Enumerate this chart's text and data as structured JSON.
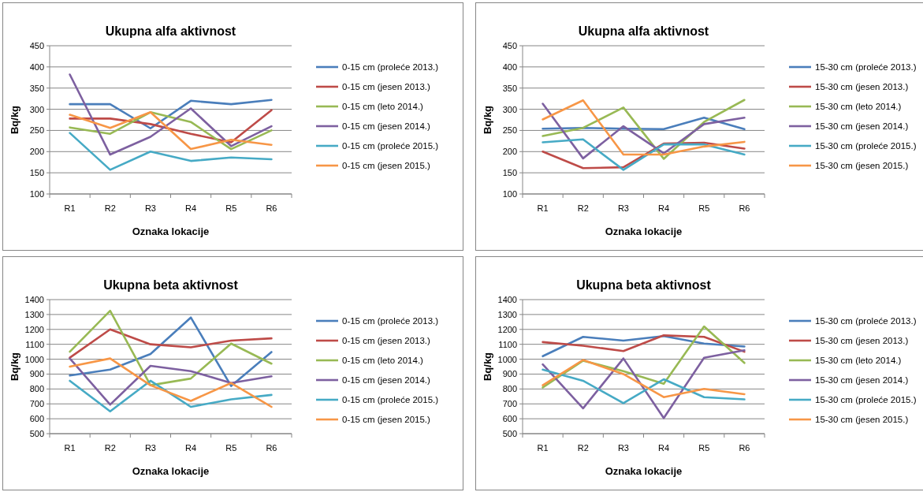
{
  "chart_data": [
    {
      "type": "line",
      "title": "Ukupna alfa aktivnost",
      "xlabel": "Oznaka lokacije",
      "ylabel": "Bq/kg",
      "categories": [
        "R1",
        "R2",
        "R3",
        "R4",
        "R5",
        "R6"
      ],
      "ylim": [
        100,
        450
      ],
      "yticks": [
        100,
        150,
        200,
        250,
        300,
        350,
        400,
        450
      ],
      "grid": "y",
      "legend": "right",
      "series": [
        {
          "name": "0-15 cm (proleće 2013.)",
          "color": "#4a7ebb",
          "values": [
            312,
            312,
            255,
            320,
            312,
            322
          ]
        },
        {
          "name": "0-15 cm (jesen 2013.)",
          "color": "#be4b48",
          "values": [
            278,
            278,
            265,
            242,
            222,
            298
          ]
        },
        {
          "name": "0-15 cm (leto 2014.)",
          "color": "#98b954",
          "values": [
            257,
            242,
            293,
            270,
            206,
            250
          ]
        },
        {
          "name": "0-15 cm (jesen 2014.)",
          "color": "#7d60a0",
          "values": [
            382,
            193,
            235,
            302,
            213,
            260
          ]
        },
        {
          "name": "0-15 cm (proleće 2015.)",
          "color": "#46aac5",
          "values": [
            244,
            157,
            200,
            178,
            186,
            182
          ]
        },
        {
          "name": "0-15 cm (jesen 2015.)",
          "color": "#f79646",
          "values": [
            287,
            256,
            293,
            206,
            228,
            216
          ]
        }
      ]
    },
    {
      "type": "line",
      "title": "Ukupna alfa aktivnost",
      "xlabel": "Oznaka lokacije",
      "ylabel": "Bq/kg",
      "categories": [
        "R1",
        "R2",
        "R3",
        "R4",
        "R5",
        "R6"
      ],
      "ylim": [
        100,
        450
      ],
      "yticks": [
        100,
        150,
        200,
        250,
        300,
        350,
        400,
        450
      ],
      "grid": "y",
      "legend": "right",
      "series": [
        {
          "name": "15-30 cm (proleće 2013.)",
          "color": "#4a7ebb",
          "values": [
            254,
            256,
            254,
            253,
            280,
            253
          ]
        },
        {
          "name": "15-30 cm (jesen 2013.)",
          "color": "#be4b48",
          "values": [
            200,
            161,
            163,
            219,
            221,
            207
          ]
        },
        {
          "name": "15-30 cm (leto 2014.)",
          "color": "#98b954",
          "values": [
            237,
            256,
            304,
            183,
            270,
            322
          ]
        },
        {
          "name": "15-30 cm (jesen 2014.)",
          "color": "#7d60a0",
          "values": [
            313,
            184,
            260,
            196,
            265,
            280
          ]
        },
        {
          "name": "15-30 cm (proleće 2015.)",
          "color": "#46aac5",
          "values": [
            222,
            229,
            157,
            217,
            217,
            193
          ]
        },
        {
          "name": "15-30 cm (jesen 2015.)",
          "color": "#f79646",
          "values": [
            276,
            321,
            193,
            193,
            212,
            223
          ]
        }
      ]
    },
    {
      "type": "line",
      "title": "Ukupna beta aktivnost",
      "xlabel": "Oznaka lokacije",
      "ylabel": "Bq/kg",
      "categories": [
        "R1",
        "R2",
        "R3",
        "R4",
        "R5",
        "R6"
      ],
      "ylim": [
        500,
        1400
      ],
      "yticks": [
        500,
        600,
        700,
        800,
        900,
        1000,
        1100,
        1200,
        1300,
        1400
      ],
      "grid": "y",
      "legend": "right",
      "series": [
        {
          "name": "0-15 cm (proleće 2013.)",
          "color": "#4a7ebb",
          "values": [
            890,
            930,
            1035,
            1280,
            820,
            1048
          ]
        },
        {
          "name": "0-15 cm (jesen 2013.)",
          "color": "#be4b48",
          "values": [
            1010,
            1200,
            1100,
            1080,
            1125,
            1140
          ]
        },
        {
          "name": "0-15 cm (leto 2014.)",
          "color": "#98b954",
          "values": [
            1050,
            1325,
            825,
            870,
            1105,
            970
          ]
        },
        {
          "name": "0-15 cm (jesen 2014.)",
          "color": "#7d60a0",
          "values": [
            1005,
            695,
            955,
            920,
            840,
            885
          ]
        },
        {
          "name": "0-15 cm (proleće 2015.)",
          "color": "#46aac5",
          "values": [
            855,
            650,
            855,
            680,
            730,
            760
          ]
        },
        {
          "name": "0-15 cm (jesen 2015.)",
          "color": "#f79646",
          "values": [
            950,
            1005,
            825,
            720,
            840,
            680
          ]
        }
      ]
    },
    {
      "type": "line",
      "title": "Ukupna beta aktivnost",
      "xlabel": "Oznaka lokacije",
      "ylabel": "Bq/kg",
      "categories": [
        "R1",
        "R2",
        "R3",
        "R4",
        "R5",
        "R6"
      ],
      "ylim": [
        500,
        1400
      ],
      "yticks": [
        500,
        600,
        700,
        800,
        900,
        1000,
        1100,
        1200,
        1300,
        1400
      ],
      "grid": "y",
      "legend": "right",
      "series": [
        {
          "name": "15-30 cm (proleće 2013.)",
          "color": "#4a7ebb",
          "values": [
            1020,
            1150,
            1125,
            1155,
            1105,
            1085
          ]
        },
        {
          "name": "15-30 cm (jesen 2013.)",
          "color": "#be4b48",
          "values": [
            1115,
            1090,
            1055,
            1160,
            1150,
            1050
          ]
        },
        {
          "name": "15-30 cm (leto 2014.)",
          "color": "#98b954",
          "values": [
            810,
            990,
            920,
            835,
            1220,
            975
          ]
        },
        {
          "name": "15-30 cm (jesen 2014.)",
          "color": "#7d60a0",
          "values": [
            965,
            670,
            1005,
            605,
            1010,
            1060
          ]
        },
        {
          "name": "15-30 cm (proleće 2015.)",
          "color": "#46aac5",
          "values": [
            930,
            855,
            705,
            865,
            745,
            730
          ]
        },
        {
          "name": "15-30 cm (jesen 2015.)",
          "color": "#f79646",
          "values": [
            825,
            995,
            900,
            745,
            800,
            765
          ]
        }
      ]
    }
  ]
}
